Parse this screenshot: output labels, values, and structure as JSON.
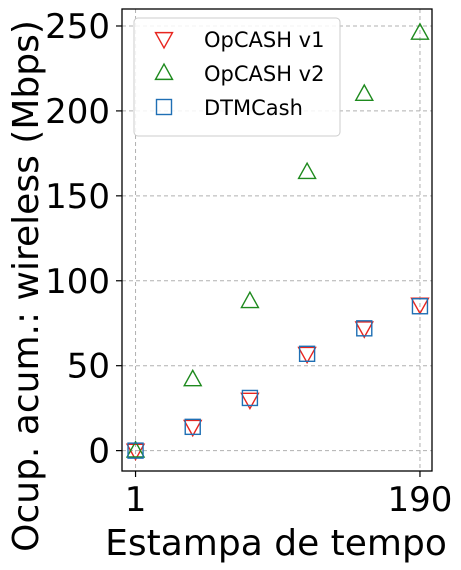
{
  "chart_data": {
    "type": "scatter",
    "xlabel": "Estampa de tempo",
    "ylabel": "Ocup. acum.: wireless (Mbps)",
    "xlim": [
      -8,
      198
    ],
    "ylim": [
      -12,
      260
    ],
    "xticks": [
      1,
      190
    ],
    "xtick_labels": [
      "1",
      "190"
    ],
    "yticks": [
      0,
      50,
      100,
      150,
      200,
      250
    ],
    "ytick_labels": [
      "0",
      "50",
      "100",
      "150",
      "200",
      "250"
    ],
    "grid": true,
    "legend_position": "top-left",
    "series": [
      {
        "name": "OpCASH v1",
        "marker": "triangle-down",
        "color": "#e8251f",
        "x": [
          1,
          39,
          77,
          115,
          153,
          190
        ],
        "y": [
          0,
          14,
          30,
          57,
          72,
          86
        ]
      },
      {
        "name": "OpCASH v2",
        "marker": "triangle-up",
        "color": "#1e8a1e",
        "x": [
          1,
          39,
          77,
          115,
          153,
          190
        ],
        "y": [
          0,
          42,
          88,
          164,
          210,
          246
        ]
      },
      {
        "name": "DTMCash",
        "marker": "square",
        "color": "#1f6fb4",
        "x": [
          1,
          39,
          77,
          115,
          153,
          190
        ],
        "y": [
          0,
          14,
          31,
          57,
          72,
          85
        ]
      }
    ]
  }
}
